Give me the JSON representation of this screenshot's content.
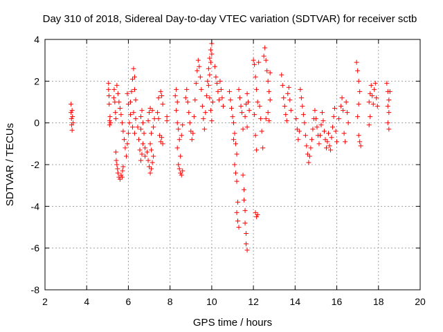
{
  "chart_data": {
    "type": "scatter",
    "title": "Day 310 of 2018, Sidereal Day-to-day VTEC variation (SDTVAR) for receiver sctb",
    "xlabel": "GPS time / hours",
    "ylabel": "SDTVAR / TECUs",
    "xlim": [
      2,
      20
    ],
    "ylim": [
      -8,
      4
    ],
    "xticks": [
      2,
      4,
      6,
      8,
      10,
      12,
      14,
      16,
      18,
      20
    ],
    "yticks": [
      -8,
      -6,
      -4,
      -2,
      0,
      2,
      4
    ],
    "xtick_labels": [
      "2",
      "4",
      "6",
      "8",
      "10",
      "12",
      "14",
      "16",
      "18",
      "20"
    ],
    "ytick_labels": [
      "-8",
      "-6",
      "-4",
      "-2",
      "0",
      "2",
      "4"
    ],
    "grid": true,
    "marker": "plus",
    "color": "#ff0000",
    "series": [
      {
        "name": "sctb",
        "points": [
          [
            3.25,
            0.9
          ],
          [
            3.25,
            0.5
          ],
          [
            3.27,
            0.2
          ],
          [
            3.28,
            -0.1
          ],
          [
            3.3,
            -0.35
          ],
          [
            3.3,
            0.6
          ],
          [
            3.32,
            0.3
          ],
          [
            3.35,
            0.0
          ],
          [
            5.05,
            1.9
          ],
          [
            5.05,
            1.6
          ],
          [
            5.07,
            1.3
          ],
          [
            5.08,
            0.9
          ],
          [
            5.1,
            0.1
          ],
          [
            5.1,
            -0.1
          ],
          [
            5.12,
            0.3
          ],
          [
            5.15,
            0.0
          ],
          [
            5.3,
            1.2
          ],
          [
            5.32,
            1.6
          ],
          [
            5.35,
            1.0
          ],
          [
            5.38,
            0.5
          ],
          [
            5.4,
            0.2
          ],
          [
            5.4,
            -1.4
          ],
          [
            5.42,
            -1.8
          ],
          [
            5.45,
            -2.0
          ],
          [
            5.48,
            -2.2
          ],
          [
            5.5,
            -2.4
          ],
          [
            5.55,
            -2.6
          ],
          [
            5.6,
            -2.7
          ],
          [
            5.65,
            -2.5
          ],
          [
            5.7,
            -2.6
          ],
          [
            5.72,
            -2.3
          ],
          [
            5.75,
            -2.1
          ],
          [
            5.45,
            1.8
          ],
          [
            5.5,
            1.4
          ],
          [
            5.55,
            1.0
          ],
          [
            5.6,
            0.7
          ],
          [
            5.65,
            0.4
          ],
          [
            5.7,
            0.0
          ],
          [
            5.75,
            -0.4
          ],
          [
            5.8,
            -0.8
          ],
          [
            5.85,
            -1.2
          ],
          [
            5.9,
            -1.6
          ],
          [
            5.95,
            -1.0
          ],
          [
            6.0,
            -0.5
          ],
          [
            6.05,
            0.0
          ],
          [
            6.1,
            0.4
          ],
          [
            6.0,
            0.9
          ],
          [
            5.95,
            1.4
          ],
          [
            6.1,
            1.0
          ],
          [
            6.15,
            1.5
          ],
          [
            6.2,
            2.1
          ],
          [
            6.25,
            2.6
          ],
          [
            6.3,
            2.2
          ],
          [
            6.3,
            1.6
          ],
          [
            6.35,
            1.1
          ],
          [
            6.25,
            0.5
          ],
          [
            6.2,
            -0.2
          ],
          [
            6.3,
            -0.5
          ],
          [
            6.35,
            0.2
          ],
          [
            6.45,
            -0.2
          ],
          [
            6.5,
            -0.8
          ],
          [
            6.55,
            -1.3
          ],
          [
            6.6,
            -1.8
          ],
          [
            6.65,
            -1.5
          ],
          [
            6.6,
            0.3
          ],
          [
            6.65,
            0.6
          ],
          [
            6.7,
            0.0
          ],
          [
            6.6,
            -0.3
          ],
          [
            6.7,
            -1.0
          ],
          [
            6.75,
            -0.5
          ],
          [
            6.8,
            -1.2
          ],
          [
            6.8,
            -1.6
          ],
          [
            6.9,
            -1.4
          ],
          [
            6.95,
            -1.8
          ],
          [
            7.0,
            -2.1
          ],
          [
            7.05,
            -2.4
          ],
          [
            7.1,
            -2.2
          ],
          [
            7.15,
            -1.9
          ],
          [
            7.05,
            -1.0
          ],
          [
            7.1,
            -0.5
          ],
          [
            7.0,
            0.5
          ],
          [
            7.05,
            0.7
          ],
          [
            7.15,
            0.6
          ],
          [
            7.2,
            -0.2
          ],
          [
            7.25,
            0.2
          ],
          [
            6.95,
            0.1
          ],
          [
            7.1,
            -1.3
          ],
          [
            7.2,
            -1.6
          ],
          [
            7.4,
            0.5
          ],
          [
            7.45,
            0.2
          ],
          [
            7.5,
            -0.6
          ],
          [
            7.55,
            -0.9
          ],
          [
            7.6,
            -0.7
          ],
          [
            7.65,
            -1.0
          ],
          [
            7.45,
            1.2
          ],
          [
            7.55,
            1.5
          ],
          [
            7.6,
            1.3
          ],
          [
            7.65,
            0.9
          ],
          [
            7.85,
            0.3
          ],
          [
            7.85,
            0.1
          ],
          [
            8.25,
            1.3
          ],
          [
            8.3,
            1.6
          ],
          [
            8.35,
            1.0
          ],
          [
            8.3,
            0.6
          ],
          [
            8.35,
            0.0
          ],
          [
            8.4,
            -0.3
          ],
          [
            8.45,
            -0.8
          ],
          [
            8.35,
            -1.2
          ],
          [
            8.4,
            -2.0
          ],
          [
            8.45,
            -2.2
          ],
          [
            8.5,
            -2.4
          ],
          [
            8.55,
            -2.5
          ],
          [
            8.6,
            -2.3
          ],
          [
            8.5,
            -1.6
          ],
          [
            8.55,
            -0.6
          ],
          [
            8.6,
            -0.1
          ],
          [
            8.75,
            1.2
          ],
          [
            8.8,
            1.6
          ],
          [
            8.85,
            1.0
          ],
          [
            8.9,
            0.5
          ],
          [
            8.95,
            0.0
          ],
          [
            9.0,
            -0.4
          ],
          [
            9.05,
            -0.8
          ],
          [
            9.1,
            -0.5
          ],
          [
            9.15,
            0.3
          ],
          [
            9.2,
            1.1
          ],
          [
            9.25,
            1.9
          ],
          [
            9.3,
            2.5
          ],
          [
            9.35,
            3.0
          ],
          [
            9.4,
            2.7
          ],
          [
            9.45,
            2.2
          ],
          [
            9.5,
            1.6
          ],
          [
            9.55,
            0.8
          ],
          [
            9.6,
            0.2
          ],
          [
            9.65,
            -0.3
          ],
          [
            9.7,
            0.5
          ],
          [
            9.75,
            1.3
          ],
          [
            9.8,
            2.0
          ],
          [
            9.85,
            2.6
          ],
          [
            9.9,
            3.1
          ],
          [
            9.95,
            3.5
          ],
          [
            10.0,
            3.8
          ],
          [
            10.0,
            3.3
          ],
          [
            9.95,
            2.9
          ],
          [
            9.9,
            2.3
          ],
          [
            9.85,
            1.8
          ],
          [
            9.9,
            1.2
          ],
          [
            9.95,
            0.6
          ],
          [
            10.0,
            0.1
          ],
          [
            10.05,
            1.0
          ],
          [
            10.15,
            2.7
          ],
          [
            10.2,
            2.2
          ],
          [
            10.25,
            1.9
          ],
          [
            10.3,
            1.5
          ],
          [
            10.35,
            1.1
          ],
          [
            10.4,
            2.0
          ],
          [
            10.45,
            1.6
          ],
          [
            10.5,
            1.2
          ],
          [
            10.55,
            0.8
          ],
          [
            10.85,
            1.5
          ],
          [
            10.9,
            1.1
          ],
          [
            10.95,
            0.7
          ],
          [
            11.0,
            0.3
          ],
          [
            11.05,
            0.0
          ],
          [
            11.1,
            -0.5
          ],
          [
            11.15,
            -1.0
          ],
          [
            11.2,
            -1.5
          ],
          [
            11.05,
            -0.8
          ],
          [
            11.1,
            -2.0
          ],
          [
            11.15,
            -2.4
          ],
          [
            11.2,
            -2.8
          ],
          [
            11.25,
            -3.8
          ],
          [
            11.2,
            -4.3
          ],
          [
            11.25,
            -4.7
          ],
          [
            11.3,
            -5.0
          ],
          [
            11.3,
            1.6
          ],
          [
            11.35,
            1.2
          ],
          [
            11.4,
            0.8
          ],
          [
            11.45,
            0.5
          ],
          [
            11.5,
            -0.3
          ],
          [
            11.5,
            -2.5
          ],
          [
            11.55,
            -3.2
          ],
          [
            11.55,
            -3.7
          ],
          [
            11.6,
            -4.2
          ],
          [
            11.6,
            -4.8
          ],
          [
            11.65,
            -5.3
          ],
          [
            11.65,
            -5.8
          ],
          [
            11.7,
            -6.1
          ],
          [
            11.6,
            0.3
          ],
          [
            11.65,
            0.9
          ],
          [
            11.7,
            1.4
          ],
          [
            11.75,
            1.0
          ],
          [
            11.8,
            0.6
          ],
          [
            11.7,
            -0.2
          ],
          [
            12.0,
            3.0
          ],
          [
            12.05,
            2.8
          ],
          [
            12.1,
            2.2
          ],
          [
            12.15,
            1.6
          ],
          [
            12.2,
            1.0
          ],
          [
            12.05,
            0.4
          ],
          [
            12.1,
            -0.6
          ],
          [
            12.15,
            -1.3
          ],
          [
            12.1,
            -4.3
          ],
          [
            12.15,
            -4.5
          ],
          [
            12.2,
            -4.4
          ],
          [
            12.25,
            2.9
          ],
          [
            12.3,
            0.8
          ],
          [
            12.35,
            0.2
          ],
          [
            12.4,
            -0.4
          ],
          [
            12.45,
            -1.2
          ],
          [
            12.5,
            3.2
          ],
          [
            12.55,
            3.6
          ],
          [
            12.6,
            3.0
          ],
          [
            12.65,
            2.5
          ],
          [
            12.7,
            2.0
          ],
          [
            12.75,
            1.5
          ],
          [
            12.8,
            1.1
          ],
          [
            12.6,
            0.2
          ],
          [
            12.7,
            0.5
          ],
          [
            12.75,
            0.1
          ],
          [
            12.8,
            2.4
          ],
          [
            13.35,
            2.3
          ],
          [
            13.4,
            1.8
          ],
          [
            13.45,
            1.2
          ],
          [
            13.5,
            0.8
          ],
          [
            13.55,
            0.4
          ],
          [
            13.6,
            0.1
          ],
          [
            13.65,
            1.4
          ],
          [
            13.7,
            1.7
          ],
          [
            13.75,
            1.1
          ],
          [
            13.8,
            0.6
          ],
          [
            14.05,
            0.2
          ],
          [
            14.1,
            -0.3
          ],
          [
            14.15,
            -0.8
          ],
          [
            14.2,
            -0.4
          ],
          [
            14.25,
            1.6
          ],
          [
            14.3,
            1.2
          ],
          [
            14.35,
            0.8
          ],
          [
            14.4,
            0.4
          ],
          [
            14.45,
            0.0
          ],
          [
            14.5,
            -0.6
          ],
          [
            14.55,
            -1.1
          ],
          [
            14.6,
            -1.5
          ],
          [
            14.65,
            -1.9
          ],
          [
            14.7,
            -1.6
          ],
          [
            14.75,
            -1.2
          ],
          [
            14.8,
            -0.8
          ],
          [
            14.85,
            -0.3
          ],
          [
            14.9,
            0.2
          ],
          [
            14.95,
            0.6
          ],
          [
            15.0,
            0.2
          ],
          [
            15.05,
            -0.2
          ],
          [
            15.1,
            -0.6
          ],
          [
            15.15,
            -1.0
          ],
          [
            15.2,
            -0.6
          ],
          [
            15.25,
            -0.1
          ],
          [
            15.3,
            0.5
          ],
          [
            15.35,
            0.1
          ],
          [
            15.4,
            -0.4
          ],
          [
            15.45,
            -0.8
          ],
          [
            15.5,
            -1.2
          ],
          [
            15.55,
            -0.9
          ],
          [
            15.6,
            -0.5
          ],
          [
            15.65,
            -1.1
          ],
          [
            15.7,
            -1.3
          ],
          [
            15.75,
            -0.7
          ],
          [
            15.8,
            -0.2
          ],
          [
            15.85,
            0.3
          ],
          [
            15.9,
            0.7
          ],
          [
            15.95,
            -0.4
          ],
          [
            16.0,
            -0.9
          ],
          [
            16.1,
            0.2
          ],
          [
            16.2,
            0.8
          ],
          [
            16.25,
            1.2
          ],
          [
            16.3,
            0.6
          ],
          [
            16.35,
            -0.5
          ],
          [
            16.4,
            -0.9
          ],
          [
            16.45,
            1.0
          ],
          [
            16.5,
            0.5
          ],
          [
            16.55,
            0.0
          ],
          [
            16.95,
            2.9
          ],
          [
            17.0,
            2.5
          ],
          [
            17.05,
            2.0
          ],
          [
            17.1,
            1.5
          ],
          [
            17.05,
            0.9
          ],
          [
            17.0,
            0.3
          ],
          [
            17.05,
            -0.6
          ],
          [
            17.1,
            -0.9
          ],
          [
            17.15,
            -1.1
          ],
          [
            17.55,
            1.0
          ],
          [
            17.6,
            1.4
          ],
          [
            17.65,
            1.8
          ],
          [
            17.7,
            1.3
          ],
          [
            17.75,
            0.9
          ],
          [
            17.8,
            1.6
          ],
          [
            17.85,
            1.9
          ],
          [
            17.9,
            1.2
          ],
          [
            17.95,
            0.8
          ],
          [
            17.6,
            0.3
          ],
          [
            17.55,
            -0.1
          ],
          [
            18.4,
            1.9
          ],
          [
            18.45,
            1.5
          ],
          [
            18.5,
            1.1
          ],
          [
            18.55,
            1.5
          ],
          [
            18.5,
            0.5
          ],
          [
            18.45,
            0.0
          ],
          [
            18.5,
            -0.3
          ],
          [
            18.45,
            0.8
          ]
        ]
      }
    ]
  }
}
